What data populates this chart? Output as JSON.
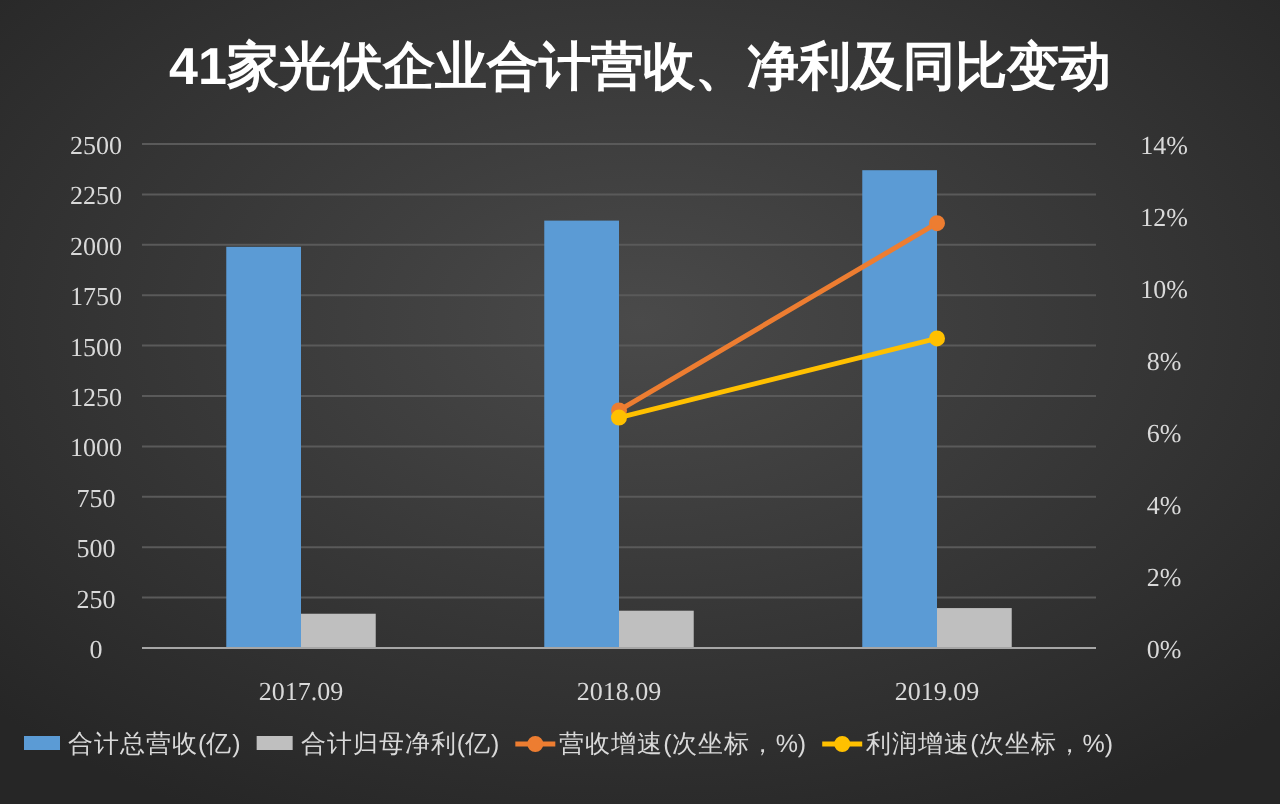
{
  "chart_data": {
    "type": "bar",
    "title": "41家光伏企业合计营收、净利及同比变动",
    "categories": [
      "2017.09",
      "2018.09",
      "2019.09"
    ],
    "series": [
      {
        "name": "合计总营收(亿)",
        "color": "#5b9bd5",
        "values": [
          1990,
          2120,
          2370
        ]
      },
      {
        "name": "合计归母净利(亿)",
        "color": "#bfbfbf",
        "values": [
          170,
          185,
          198
        ]
      },
      {
        "name": "营收增速(次坐标，%)",
        "type": "line",
        "axis": "y2",
        "color": "#ed7d31",
        "values": [
          null,
          6.6,
          11.8
        ]
      },
      {
        "name": "利润增速(次坐标，%)",
        "type": "line",
        "axis": "y2",
        "color": "#ffc000",
        "values": [
          null,
          6.4,
          8.6
        ]
      }
    ],
    "ylim": [
      0,
      2500
    ],
    "yticks": [
      0,
      250,
      500,
      750,
      1000,
      1250,
      1500,
      1750,
      2000,
      2250,
      2500
    ],
    "y2lim": [
      0,
      14
    ],
    "y2ticks": [
      {
        "value": 0,
        "label": "0%"
      },
      {
        "value": 2,
        "label": "2%"
      },
      {
        "value": 4,
        "label": "4%"
      },
      {
        "value": 6,
        "label": "6%"
      },
      {
        "value": 8,
        "label": "8%"
      },
      {
        "value": 10,
        "label": "10%"
      },
      {
        "value": 12,
        "label": "12%"
      },
      {
        "value": 14,
        "label": "14%"
      }
    ],
    "grid": "y",
    "legend": "bottom",
    "marker": "circle",
    "line_style": "solid"
  }
}
